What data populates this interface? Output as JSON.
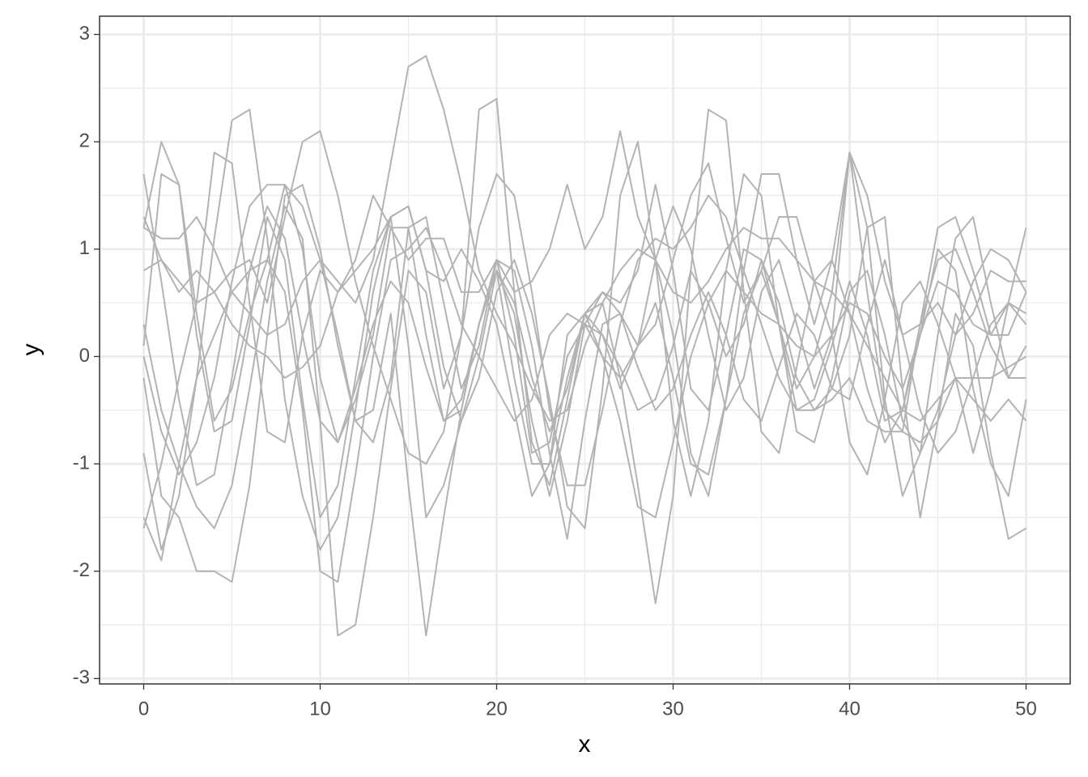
{
  "chart_data": {
    "type": "line",
    "x_label": "x",
    "y_label": "y",
    "x": [
      0,
      1,
      2,
      3,
      4,
      5,
      6,
      7,
      8,
      9,
      10,
      11,
      12,
      13,
      14,
      15,
      16,
      17,
      18,
      19,
      20,
      21,
      22,
      23,
      24,
      25,
      26,
      27,
      28,
      29,
      30,
      31,
      32,
      33,
      34,
      35,
      36,
      37,
      38,
      39,
      40,
      41,
      42,
      43,
      44,
      45,
      46,
      47,
      48,
      49,
      50
    ],
    "xlim": [
      -2.5,
      52.5
    ],
    "xticks": [
      0,
      10,
      20,
      30,
      40,
      50
    ],
    "ylim": [
      -3.05,
      3.17
    ],
    "yticks": [
      -3,
      -2,
      -1,
      0,
      1,
      2,
      3
    ],
    "grid": true,
    "series": [
      {
        "color": "#b3b3b3",
        "values": [
          1.2,
          1.1,
          1.1,
          1.3,
          1.0,
          0.6,
          0.4,
          0.2,
          0.3,
          0.7,
          0.9,
          0.7,
          0.5,
          0.9,
          1.8,
          2.7,
          2.8,
          2.3,
          1.6,
          0.8,
          0.4,
          0.1,
          -0.3,
          -0.6,
          -0.5,
          0.1,
          0.5,
          0.8,
          1.0,
          0.9,
          0.6,
          0.5,
          0.7,
          1.0,
          1.2,
          1.1,
          1.1,
          0.9,
          0.7,
          0.6,
          0.4,
          0.1,
          -0.2,
          -0.5,
          -0.6,
          -0.4,
          -0.2,
          -0.2,
          -0.2,
          -0.1,
          0.0
        ]
      },
      {
        "color": "#b3b3b3",
        "values": [
          0.3,
          -0.5,
          -1.0,
          -1.4,
          -1.6,
          -1.2,
          -0.3,
          0.7,
          1.4,
          1.1,
          -0.6,
          -2.6,
          -2.5,
          -1.5,
          -0.3,
          0.8,
          0.6,
          -0.3,
          0.2,
          2.3,
          2.4,
          0.6,
          -0.8,
          -1.2,
          -0.4,
          0.4,
          0.2,
          -0.3,
          0.1,
          0.9,
          1.4,
          1.0,
          0.2,
          -0.5,
          -0.2,
          0.6,
          0.9,
          0.3,
          -0.3,
          0.2,
          1.9,
          1.2,
          -0.4,
          -1.3,
          -0.9,
          0.2,
          1.1,
          1.3,
          0.5,
          -0.2,
          0.1
        ]
      },
      {
        "color": "#b3b3b3",
        "values": [
          -0.9,
          -1.8,
          -1.3,
          -0.2,
          1.1,
          2.2,
          2.3,
          1.1,
          -0.4,
          -1.3,
          -1.8,
          -1.5,
          -0.5,
          0.6,
          1.3,
          1.4,
          0.8,
          -0.1,
          -0.6,
          -0.2,
          0.6,
          0.9,
          0.4,
          -0.4,
          -1.4,
          -1.6,
          -0.3,
          1.5,
          2.0,
          0.9,
          -0.6,
          -1.3,
          -0.6,
          0.8,
          1.7,
          1.5,
          0.3,
          -0.7,
          -0.8,
          -0.2,
          0.6,
          0.8,
          0.2,
          -0.6,
          -0.9,
          -0.5,
          0.2,
          0.7,
          1.0,
          0.9,
          0.6
        ]
      },
      {
        "color": "#b3b3b3",
        "values": [
          1.7,
          0.7,
          -0.4,
          -1.2,
          -1.1,
          -0.2,
          0.8,
          1.4,
          1.1,
          0.2,
          -0.6,
          -0.8,
          -0.3,
          0.3,
          0.7,
          0.5,
          -0.1,
          -0.6,
          -0.4,
          0.3,
          0.8,
          0.5,
          -0.2,
          -0.7,
          -0.3,
          0.4,
          0.5,
          -0.2,
          -1.2,
          -2.3,
          -1.3,
          0.8,
          2.3,
          2.2,
          0.6,
          -0.7,
          -0.9,
          -0.1,
          0.7,
          0.9,
          0.4,
          -0.3,
          -0.8,
          -0.5,
          0.3,
          0.9,
          1.0,
          0.6,
          0.1,
          -0.2,
          -0.2
        ]
      },
      {
        "color": "#b3b3b3",
        "values": [
          0.8,
          0.9,
          0.7,
          0.5,
          0.6,
          0.8,
          0.9,
          0.5,
          1.3,
          2.0,
          2.1,
          1.5,
          0.7,
          0.1,
          -0.4,
          -0.9,
          -1.0,
          -0.7,
          0.2,
          1.2,
          1.7,
          1.5,
          0.6,
          -0.5,
          -1.2,
          -1.2,
          -0.5,
          0.3,
          0.9,
          1.1,
          1.0,
          1.2,
          1.5,
          1.3,
          0.8,
          0.3,
          -0.2,
          -0.5,
          -0.5,
          -0.4,
          -0.2,
          -0.6,
          -0.7,
          -0.7,
          -0.8,
          -0.6,
          -0.2,
          -0.4,
          -0.6,
          -0.4,
          -0.6
        ]
      },
      {
        "color": "#b3b3b3",
        "values": [
          -1.6,
          -1.0,
          -0.2,
          0.5,
          1.9,
          1.8,
          0.5,
          -0.7,
          -0.8,
          0.2,
          0.8,
          0.6,
          0.9,
          1.5,
          1.2,
          0.9,
          1.1,
          1.1,
          0.6,
          0.6,
          0.9,
          0.6,
          0.7,
          1.0,
          1.6,
          1.0,
          1.3,
          2.1,
          1.3,
          0.9,
          0.2,
          -0.9,
          -1.3,
          -0.4,
          0.8,
          1.7,
          1.7,
          0.9,
          0.3,
          0.9,
          1.9,
          1.5,
          0.7,
          0.2,
          0.3,
          0.5,
          0.2,
          0.4,
          0.8,
          0.7,
          0.7
        ]
      },
      {
        "color": "#b3b3b3",
        "values": [
          -0.2,
          -1.3,
          -1.5,
          -2.0,
          -2.0,
          -2.1,
          -1.2,
          0.2,
          1.5,
          1.6,
          1.0,
          0.1,
          -0.6,
          -0.8,
          -0.2,
          1.2,
          1.3,
          0.5,
          -0.3,
          0.1,
          0.9,
          0.8,
          0.1,
          -0.9,
          -1.7,
          -0.6,
          0.3,
          0.4,
          0.1,
          0.3,
          0.9,
          1.5,
          1.8,
          1.1,
          0.5,
          0.8,
          1.3,
          1.3,
          0.7,
          0.2,
          -0.8,
          -1.1,
          -0.4,
          0.5,
          0.7,
          0.3,
          -0.2,
          -0.9,
          -0.3,
          0.5,
          1.2
        ]
      },
      {
        "color": "#b3b3b3",
        "values": [
          0.1,
          1.7,
          1.6,
          0.2,
          -0.7,
          -0.6,
          0.3,
          1.3,
          0.9,
          -0.4,
          -1.5,
          -1.2,
          -0.2,
          0.8,
          1.3,
          0.1,
          -1.5,
          -1.2,
          -0.6,
          0.0,
          0.8,
          0.4,
          -0.6,
          -1.3,
          -0.6,
          0.3,
          0.6,
          0.4,
          -0.1,
          -0.5,
          -0.3,
          0.2,
          0.6,
          0.2,
          -0.4,
          -0.6,
          -0.1,
          0.4,
          0.2,
          -0.3,
          -0.4,
          0.3,
          0.9,
          0.2,
          -0.5,
          -0.9,
          -0.7,
          -0.2,
          0.3,
          0.5,
          0.3
        ]
      },
      {
        "color": "#b3b3b3",
        "values": [
          1.2,
          2.0,
          1.6,
          0.4,
          -0.6,
          -0.3,
          0.4,
          0.9,
          1.6,
          1.0,
          -0.2,
          -0.8,
          -0.4,
          0.2,
          1.2,
          1.2,
          0.2,
          -0.6,
          -0.5,
          0.3,
          0.8,
          -0.2,
          -1.0,
          -1.0,
          -0.2,
          0.4,
          0.6,
          0.5,
          0.8,
          1.6,
          0.8,
          -0.3,
          -0.5,
          0.2,
          1.0,
          0.9,
          0.3,
          -0.3,
          0.0,
          0.6,
          1.9,
          0.6,
          -0.5,
          -0.7,
          0.3,
          1.2,
          1.3,
          0.8,
          0.2,
          0.2,
          0.6
        ]
      },
      {
        "color": "#b3b3b3",
        "values": [
          0.0,
          -0.7,
          -1.1,
          -0.8,
          -0.2,
          0.7,
          1.4,
          1.6,
          1.6,
          1.4,
          0.9,
          0.2,
          -0.6,
          -0.5,
          0.4,
          -1.2,
          -2.6,
          -1.5,
          -0.5,
          0.3,
          0.9,
          0.2,
          -0.9,
          -0.8,
          0.0,
          0.3,
          0.2,
          -0.1,
          -0.5,
          -0.4,
          0.1,
          0.8,
          0.5,
          0.0,
          0.3,
          0.9,
          0.5,
          -0.2,
          -0.5,
          -0.3,
          0.2,
          1.2,
          1.3,
          -0.3,
          -1.5,
          -0.6,
          0.4,
          0.1,
          -0.9,
          -1.7,
          -1.6
        ]
      },
      {
        "color": "#b3b3b3",
        "values": [
          1.3,
          0.9,
          0.6,
          0.8,
          0.6,
          0.3,
          0.1,
          0.0,
          -0.2,
          -0.1,
          0.1,
          0.6,
          0.8,
          1.0,
          1.3,
          1.4,
          0.8,
          0.7,
          1.0,
          0.7,
          0.3,
          -0.5,
          -1.3,
          -1.0,
          0.2,
          0.4,
          0.0,
          -0.6,
          -1.4,
          -1.5,
          -0.8,
          0.0,
          0.5,
          0.8,
          0.6,
          0.4,
          0.3,
          0.1,
          0.0,
          0.2,
          0.5,
          0.4,
          0.0,
          -0.3,
          0.2,
          0.7,
          0.6,
          0.3,
          0.2,
          0.5,
          0.4
        ]
      },
      {
        "color": "#b3b3b3",
        "values": [
          -1.5,
          -1.9,
          -1.0,
          -0.2,
          0.2,
          0.6,
          0.8,
          0.9,
          0.6,
          -0.5,
          -2.0,
          -2.1,
          -1.1,
          0.0,
          0.9,
          1.0,
          1.2,
          0.8,
          0.3,
          0.0,
          -0.3,
          -0.6,
          -0.4,
          0.2,
          0.4,
          0.3,
          0.0,
          -0.2,
          0.1,
          0.5,
          -0.2,
          -1.0,
          -1.1,
          -0.4,
          0.4,
          0.8,
          0.3,
          -0.5,
          -0.4,
          0.1,
          0.7,
          0.2,
          -0.6,
          -0.5,
          0.2,
          1.0,
          0.8,
          -0.3,
          -1.0,
          -1.3,
          -0.4
        ]
      }
    ]
  }
}
